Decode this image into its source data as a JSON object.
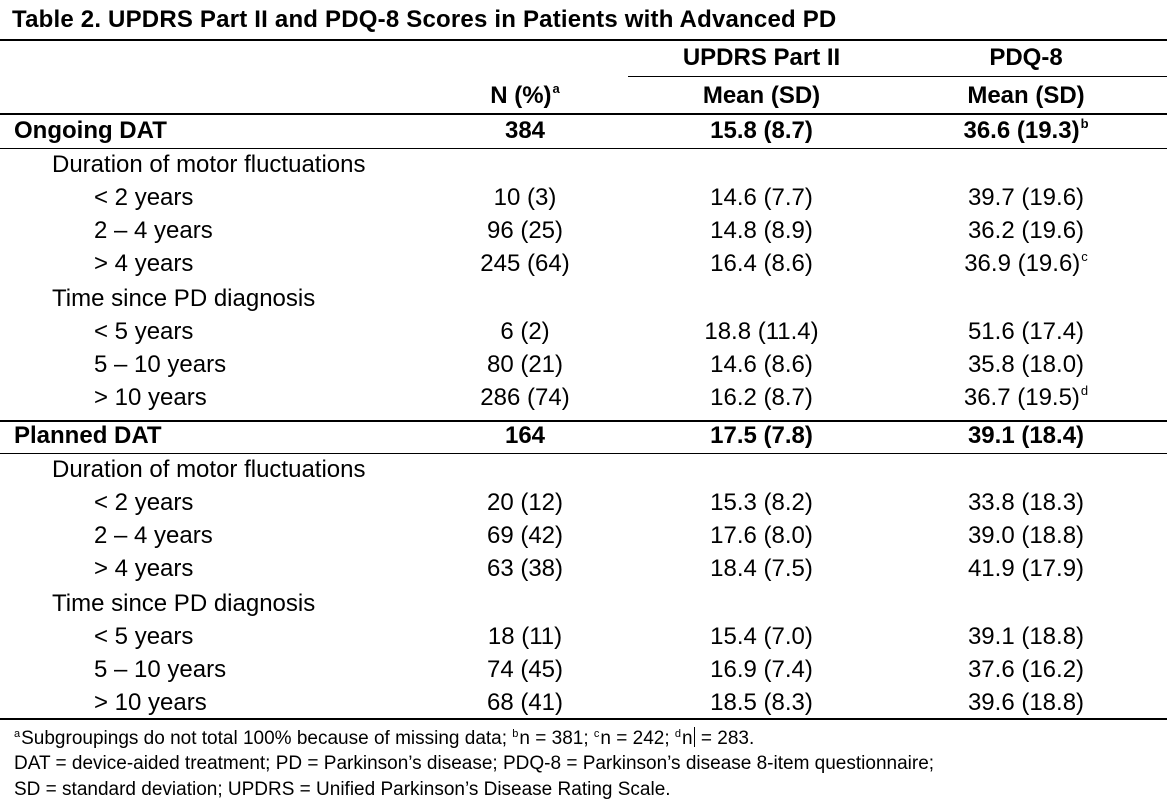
{
  "title": "Table 2. UPDRS Part II and PDQ-8 Scores in Patients with Advanced PD",
  "header": {
    "group_updrs": "UPDRS Part II",
    "group_pdq": "PDQ-8",
    "col_n": "N (%)",
    "col_n_sup": "a",
    "col_updrs": "Mean (SD)",
    "col_pdq": "Mean (SD)"
  },
  "sections": [
    {
      "label": "Ongoing DAT",
      "n": "384",
      "updrs": "15.8 (8.7)",
      "pdq": "36.6 (19.3)",
      "pdq_sup": "b",
      "subgroups": [
        {
          "label": "Duration of motor fluctuations",
          "rows": [
            {
              "label": "< 2 years",
              "n": "10 (3)",
              "updrs": "14.6 (7.7)",
              "pdq": "39.7 (19.6)",
              "pdq_sup": ""
            },
            {
              "label": "2 – 4 years",
              "n": "96 (25)",
              "updrs": "14.8 (8.9)",
              "pdq": "36.2 (19.6)",
              "pdq_sup": ""
            },
            {
              "label": "> 4 years",
              "n": "245 (64)",
              "updrs": "16.4 (8.6)",
              "pdq": "36.9 (19.6)",
              "pdq_sup": "c"
            }
          ]
        },
        {
          "label": "Time since PD diagnosis",
          "rows": [
            {
              "label": "< 5 years",
              "n": "6 (2)",
              "updrs": "18.8 (11.4)",
              "pdq": "51.6 (17.4)",
              "pdq_sup": ""
            },
            {
              "label": "5 – 10 years",
              "n": "80 (21)",
              "updrs": "14.6 (8.6)",
              "pdq": "35.8 (18.0)",
              "pdq_sup": ""
            },
            {
              "label": "> 10 years",
              "n": "286 (74)",
              "updrs": "16.2 (8.7)",
              "pdq": "36.7 (19.5)",
              "pdq_sup": "d"
            }
          ]
        }
      ]
    },
    {
      "label": "Planned DAT",
      "n": "164",
      "updrs": "17.5 (7.8)",
      "pdq": "39.1 (18.4)",
      "pdq_sup": "",
      "subgroups": [
        {
          "label": "Duration of motor fluctuations",
          "rows": [
            {
              "label": "< 2 years",
              "n": "20 (12)",
              "updrs": "15.3 (8.2)",
              "pdq": "33.8 (18.3)",
              "pdq_sup": ""
            },
            {
              "label": "2 – 4 years",
              "n": "69 (42)",
              "updrs": "17.6 (8.0)",
              "pdq": "39.0 (18.8)",
              "pdq_sup": ""
            },
            {
              "label": "> 4 years",
              "n": "63 (38)",
              "updrs": "18.4 (7.5)",
              "pdq": "41.9 (17.9)",
              "pdq_sup": ""
            }
          ]
        },
        {
          "label": "Time since PD diagnosis",
          "rows": [
            {
              "label": "< 5 years",
              "n": "18 (11)",
              "updrs": "15.4 (7.0)",
              "pdq": "39.1 (18.8)",
              "pdq_sup": ""
            },
            {
              "label": "5 – 10 years",
              "n": "74 (45)",
              "updrs": "16.9 (7.4)",
              "pdq": "37.6 (16.2)",
              "pdq_sup": ""
            },
            {
              "label": "> 10 years",
              "n": "68 (41)",
              "updrs": "18.5 (8.3)",
              "pdq": "39.6 (18.8)",
              "pdq_sup": ""
            }
          ]
        }
      ]
    }
  ],
  "footnotes": {
    "line1": {
      "a_mark": "a",
      "a_text": "Subgroupings do not total 100% because of missing data; ",
      "b_mark": "b",
      "b_text": "n = 381; ",
      "c_mark": "c",
      "c_text": "n = 242; ",
      "d_mark": "d",
      "d_text_pre": "n",
      "d_text_post": " = 283."
    },
    "line2": "DAT = device-aided treatment; PD = Parkinson’s disease; PDQ-8 = Parkinson’s disease 8-item questionnaire;",
    "line3": "SD = standard deviation; UPDRS = Unified Parkinson’s Disease Rating Scale."
  }
}
